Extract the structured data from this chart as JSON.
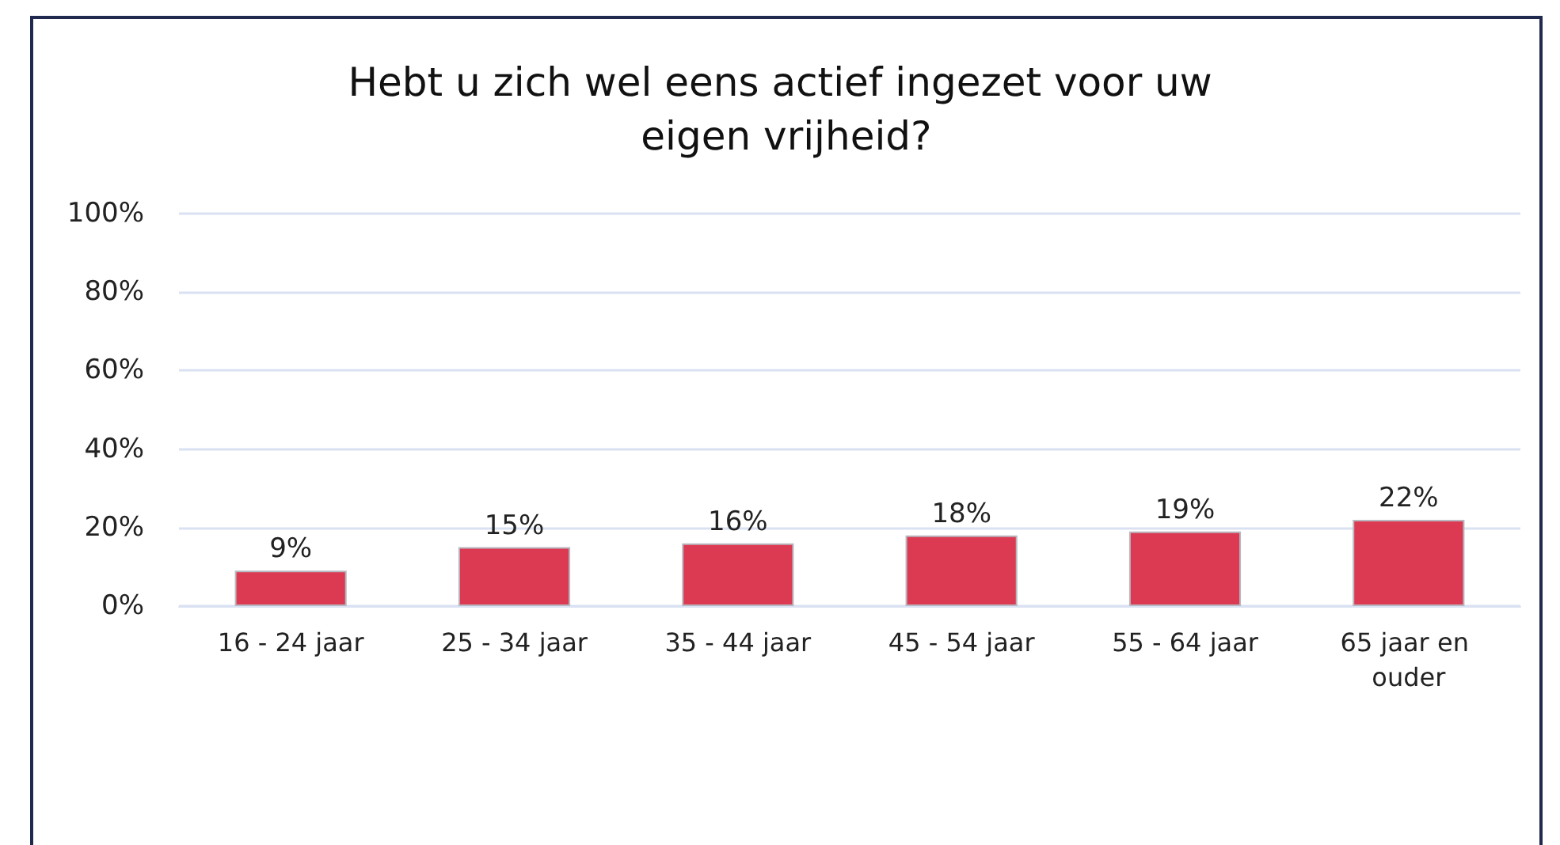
{
  "chart_data": {
    "type": "bar",
    "title": "Hebt u zich wel eens actief ingezet voor uw eigen vrijheid?",
    "categories": [
      "16 - 24 jaar",
      "25 - 34 jaar",
      "35 - 44 jaar",
      "45 - 54 jaar",
      "55 - 64 jaar",
      "65 jaar en ouder"
    ],
    "values": [
      9,
      15,
      16,
      18,
      19,
      22
    ],
    "value_labels": [
      "9%",
      "15%",
      "16%",
      "18%",
      "19%",
      "22%"
    ],
    "color": "#dc3a52",
    "ylim": [
      0,
      100
    ],
    "yticks": [
      {
        "value": 0,
        "label": "0%"
      },
      {
        "value": 20,
        "label": "20%"
      },
      {
        "value": 40,
        "label": "40%"
      },
      {
        "value": 60,
        "label": "60%"
      },
      {
        "value": 80,
        "label": "80%"
      },
      {
        "value": 100,
        "label": "100%"
      }
    ],
    "grid": "y"
  }
}
